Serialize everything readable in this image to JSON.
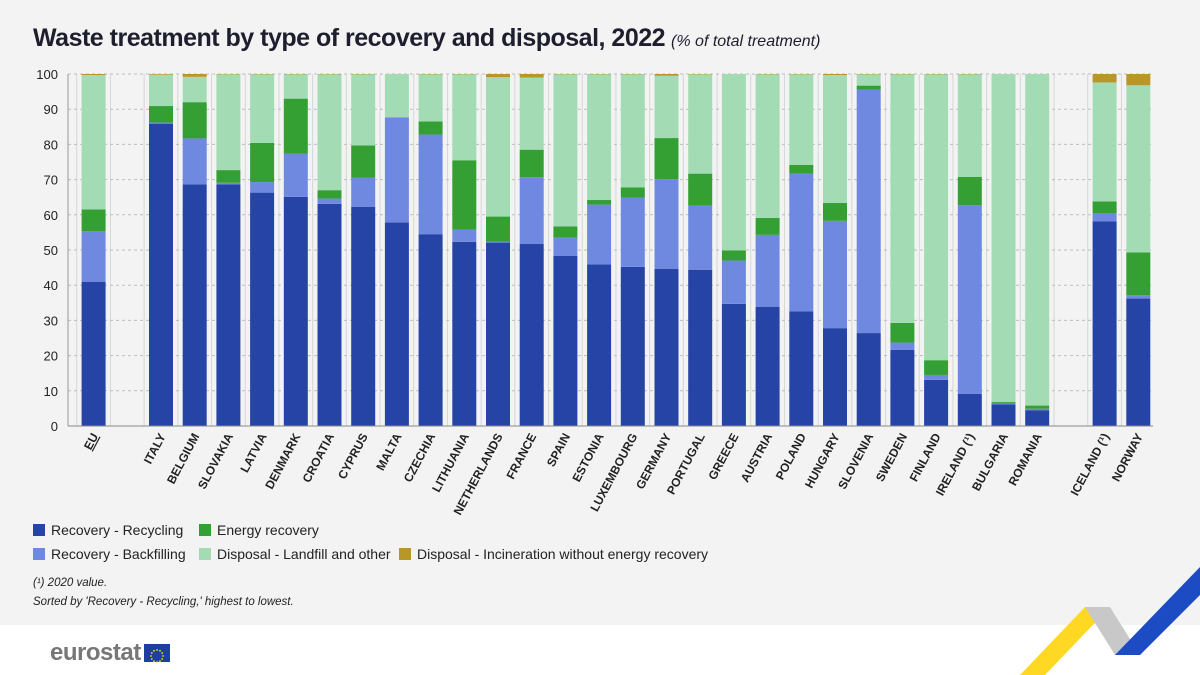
{
  "title": "Waste treatment by type of recovery and disposal, 2022",
  "subtitle": "(% of total treatment)",
  "notes": [
    "(¹) 2020 value.",
    "Sorted by 'Recovery - Recycling,' highest to lowest."
  ],
  "logo": "eurostat",
  "chart_data": {
    "type": "bar",
    "stacked": true,
    "title": "Waste treatment by type of recovery and disposal, 2022",
    "ylabel": "% of total treatment",
    "ylim": [
      0,
      100
    ],
    "yticks": [
      0,
      10,
      20,
      30,
      40,
      50,
      60,
      70,
      80,
      90,
      100
    ],
    "grid": true,
    "legend_placement": "bottom",
    "categories": [
      "EU",
      "",
      "ITALY",
      "BELGIUM",
      "SLOVAKIA",
      "LATVIA",
      "DENMARK",
      "CROATIA",
      "CYPRUS",
      "MALTA",
      "CZECHIA",
      "LITHUANIA",
      "NETHERLANDS",
      "FRANCE",
      "SPAIN",
      "ESTONIA",
      "LUXEMBOURG",
      "GERMANY",
      "PORTUGAL",
      "GREECE",
      "AUSTRIA",
      "POLAND",
      "HUNGARY",
      "SLOVENIA",
      "SWEDEN",
      "FINLAND",
      "IRELAND (¹)",
      "BULGARIA",
      "ROMANIA",
      "",
      "ICELAND (¹)",
      "NORWAY"
    ],
    "series": [
      {
        "name": "Recovery - Recycling",
        "color": "#2644a6",
        "values": [
          41.0,
          null,
          85.9,
          68.6,
          68.6,
          66.3,
          65.1,
          63.1,
          62.3,
          57.8,
          54.5,
          52.3,
          52.1,
          51.7,
          48.3,
          45.9,
          45.2,
          44.6,
          44.4,
          34.7,
          33.9,
          32.6,
          27.8,
          26.4,
          21.6,
          13.1,
          9.1,
          6.1,
          4.5,
          null,
          58.1,
          36.2
        ]
      },
      {
        "name": "Recovery - Backfilling",
        "color": "#7089e0",
        "values": [
          14.3,
          null,
          0.3,
          13.1,
          0.5,
          3.0,
          12.3,
          1.5,
          8.3,
          29.9,
          28.3,
          3.5,
          0.3,
          19.0,
          5.2,
          17.0,
          19.7,
          25.5,
          18.2,
          12.3,
          20.4,
          39.1,
          30.5,
          69.1,
          2.1,
          1.4,
          53.6,
          0.2,
          0.4,
          null,
          2.3,
          1.0
        ]
      },
      {
        "name": "Energy recovery",
        "color": "#34a033",
        "values": [
          6.2,
          null,
          4.7,
          10.3,
          3.6,
          11.1,
          15.6,
          2.4,
          9.1,
          0.0,
          3.7,
          19.7,
          7.1,
          7.8,
          3.2,
          1.3,
          2.9,
          11.7,
          9.1,
          2.9,
          4.8,
          2.5,
          5.1,
          1.2,
          5.6,
          4.2,
          8.1,
          0.5,
          0.9,
          null,
          3.4,
          12.1
        ]
      },
      {
        "name": "Disposal - Landfill and other",
        "color": "#a3dcb4",
        "values": [
          38.2,
          null,
          8.9,
          7.2,
          27.2,
          19.5,
          6.9,
          32.9,
          20.2,
          12.3,
          13.4,
          24.4,
          39.6,
          20.5,
          43.2,
          35.7,
          32.1,
          17.7,
          28.2,
          50.1,
          40.8,
          25.7,
          36.3,
          3.2,
          70.6,
          81.2,
          29.1,
          93.2,
          94.2,
          null,
          33.8,
          47.5
        ]
      },
      {
        "name": "Disposal - Incineration without energy recovery",
        "color": "#b8962a",
        "values": [
          0.3,
          null,
          0.2,
          0.8,
          0.1,
          0.1,
          0.1,
          0.1,
          0.1,
          0.0,
          0.1,
          0.1,
          0.9,
          1.0,
          0.1,
          0.1,
          0.1,
          0.5,
          0.1,
          0.0,
          0.1,
          0.1,
          0.3,
          0.1,
          0.1,
          0.1,
          0.1,
          0.0,
          0.0,
          null,
          2.4,
          3.2
        ]
      }
    ]
  }
}
